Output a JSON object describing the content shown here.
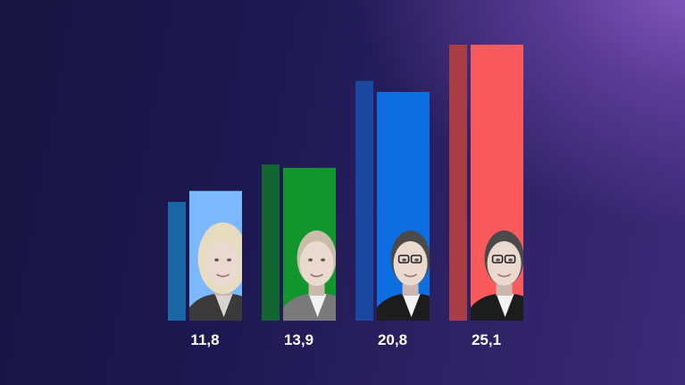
{
  "chart_data": {
    "type": "bar",
    "title": "",
    "xlabel": "",
    "ylabel": "",
    "ylim": [
      0,
      25.1
    ],
    "categories": [
      "11,8",
      "13,9",
      "20,8",
      "25,1"
    ],
    "series": [
      {
        "name": "",
        "values": [
          11.8,
          13.9,
          20.8,
          25.1
        ],
        "value_labels": [
          "11,8",
          "13,9",
          "20,8",
          "25,1"
        ],
        "colors": [
          "#7bb8ff",
          "#10962d",
          "#0c6ee0",
          "#fb5a5c"
        ]
      },
      {
        "name": "",
        "values": [
          10.8,
          14.2,
          21.8,
          25.1
        ],
        "colors": [
          "#1a67a6",
          "#106530",
          "#1a48a0",
          "#a93d45"
        ]
      }
    ]
  },
  "portraits": [
    "portrait-blonde-woman",
    "portrait-man-squinting",
    "portrait-man-glasses-suit",
    "portrait-man-glasses-dark-suit"
  ]
}
